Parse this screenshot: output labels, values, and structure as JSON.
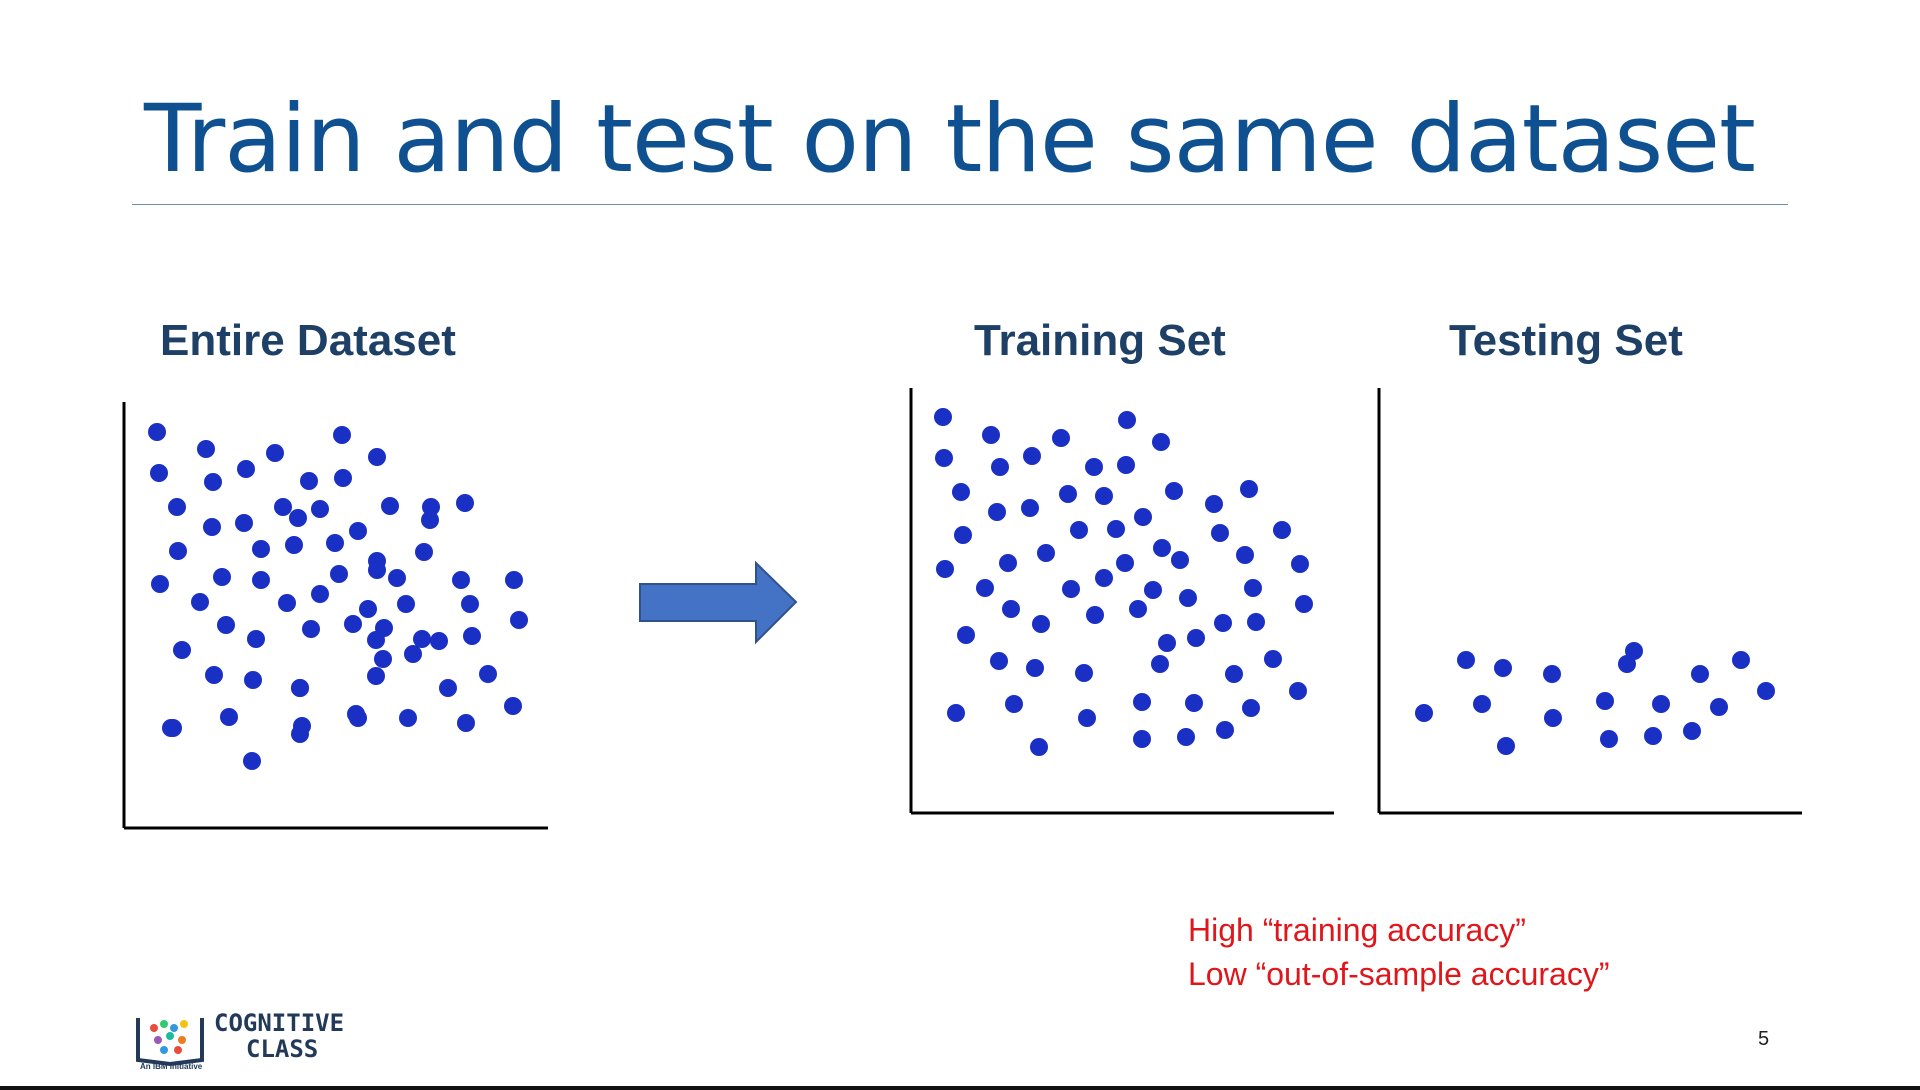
{
  "slide": {
    "title": "Train and test on the same dataset",
    "panels": {
      "entire": "Entire Dataset",
      "training": "Training Set",
      "testing": "Testing Set"
    },
    "caption": {
      "line1": "High “training accuracy”",
      "line2": "Low “out-of-sample accuracy”"
    },
    "page_number": "5",
    "logo": {
      "line1": "COGNITIVE",
      "line2": "CLASS",
      "tagline": "An IBM Initiative"
    },
    "colors": {
      "title": "#0f5190",
      "panel_label": "#1e3f66",
      "point": "#1a2fc4",
      "arrow": "#4472c4",
      "caption": "#e0161a"
    },
    "arrow_icon": "right-arrow-icon"
  }
}
